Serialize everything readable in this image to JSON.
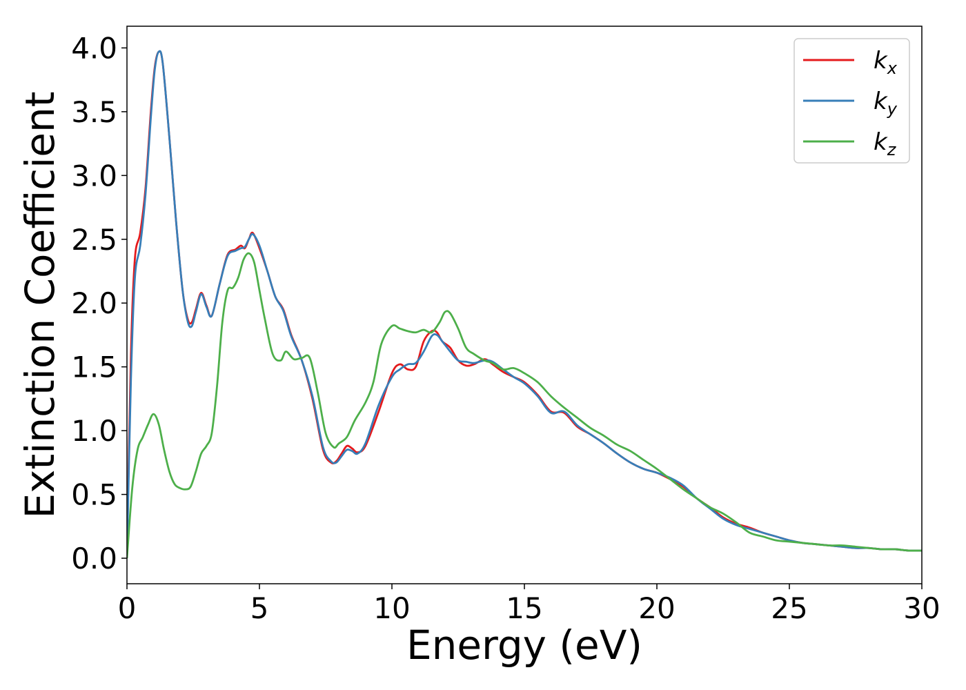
{
  "chart_data": {
    "type": "line",
    "title": "",
    "xlabel": "Energy (eV)",
    "ylabel": "Extinction Coefficient",
    "xlim": [
      0,
      30
    ],
    "ylim": [
      -0.2,
      4.17
    ],
    "xticks": [
      0,
      5,
      10,
      15,
      20,
      25,
      30
    ],
    "xtick_labels": [
      "0",
      "5",
      "10",
      "15",
      "20",
      "25",
      "30"
    ],
    "yticks": [
      0.0,
      0.5,
      1.0,
      1.5,
      2.0,
      2.5,
      3.0,
      3.5,
      4.0
    ],
    "ytick_labels": [
      "0.0",
      "0.5",
      "1.0",
      "1.5",
      "2.0",
      "2.5",
      "3.0",
      "3.5",
      "4.0"
    ],
    "grid": false,
    "legend_position": "top-right",
    "series": [
      {
        "name": "k_x",
        "label_base": "k",
        "label_sub": "x",
        "color": "#e41a1c",
        "x": [
          0,
          0.15,
          0.3,
          0.5,
          0.7,
          0.9,
          1.05,
          1.2,
          1.35,
          1.6,
          1.85,
          2.1,
          2.3,
          2.45,
          2.6,
          2.8,
          3.0,
          3.2,
          3.5,
          3.8,
          4.1,
          4.3,
          4.45,
          4.6,
          4.75,
          5.0,
          5.3,
          5.6,
          5.9,
          6.2,
          6.6,
          7.0,
          7.4,
          7.7,
          7.9,
          8.1,
          8.3,
          8.5,
          8.7,
          9.0,
          9.5,
          10.0,
          10.3,
          10.6,
          10.9,
          11.2,
          11.5,
          11.7,
          11.9,
          12.2,
          12.5,
          12.8,
          13.1,
          13.5,
          13.8,
          14.2,
          14.6,
          15.0,
          15.5,
          16.0,
          16.5,
          17.0,
          17.5,
          18.0,
          18.5,
          19.0,
          19.5,
          20.0,
          20.5,
          21.0,
          21.5,
          22.0,
          22.5,
          23.0,
          23.5,
          24.0,
          24.5,
          25.0,
          25.5,
          26.0,
          26.5,
          27.0,
          27.5,
          28.0,
          28.5,
          29.0,
          29.5,
          30.0
        ],
        "y": [
          0.0,
          1.6,
          2.35,
          2.55,
          2.9,
          3.5,
          3.85,
          3.97,
          3.88,
          3.3,
          2.65,
          2.1,
          1.87,
          1.85,
          1.95,
          2.08,
          1.98,
          1.9,
          2.15,
          2.38,
          2.42,
          2.45,
          2.43,
          2.5,
          2.55,
          2.43,
          2.25,
          2.05,
          1.95,
          1.75,
          1.55,
          1.25,
          0.85,
          0.75,
          0.76,
          0.82,
          0.88,
          0.86,
          0.83,
          0.88,
          1.15,
          1.45,
          1.52,
          1.48,
          1.5,
          1.7,
          1.78,
          1.77,
          1.7,
          1.65,
          1.55,
          1.51,
          1.52,
          1.56,
          1.52,
          1.46,
          1.42,
          1.38,
          1.28,
          1.15,
          1.14,
          1.03,
          0.97,
          0.9,
          0.82,
          0.75,
          0.7,
          0.67,
          0.62,
          0.56,
          0.47,
          0.4,
          0.32,
          0.27,
          0.24,
          0.2,
          0.17,
          0.14,
          0.12,
          0.11,
          0.1,
          0.09,
          0.08,
          0.08,
          0.07,
          0.07,
          0.06,
          0.06
        ]
      },
      {
        "name": "k_y",
        "label_base": "k",
        "label_sub": "y",
        "color": "#377eb8",
        "x": [
          0,
          0.15,
          0.3,
          0.5,
          0.7,
          0.9,
          1.05,
          1.2,
          1.35,
          1.6,
          1.85,
          2.1,
          2.3,
          2.45,
          2.6,
          2.8,
          3.0,
          3.2,
          3.5,
          3.8,
          4.1,
          4.3,
          4.45,
          4.6,
          4.75,
          5.0,
          5.3,
          5.6,
          5.9,
          6.2,
          6.6,
          7.0,
          7.4,
          7.7,
          7.9,
          8.1,
          8.3,
          8.5,
          8.7,
          9.0,
          9.5,
          10.0,
          10.3,
          10.6,
          10.9,
          11.2,
          11.5,
          11.7,
          11.9,
          12.2,
          12.5,
          12.8,
          13.1,
          13.5,
          13.8,
          14.2,
          14.6,
          15.0,
          15.5,
          16.0,
          16.5,
          17.0,
          17.5,
          18.0,
          18.5,
          19.0,
          19.5,
          20.0,
          20.5,
          21.0,
          21.5,
          22.0,
          22.5,
          23.0,
          23.5,
          24.0,
          24.5,
          25.0,
          25.5,
          26.0,
          26.5,
          27.0,
          27.5,
          28.0,
          28.5,
          29.0,
          29.5,
          30.0
        ],
        "y": [
          0.0,
          1.4,
          2.2,
          2.45,
          2.85,
          3.45,
          3.83,
          3.97,
          3.88,
          3.3,
          2.65,
          2.1,
          1.85,
          1.82,
          1.93,
          2.07,
          1.97,
          1.9,
          2.15,
          2.37,
          2.41,
          2.43,
          2.44,
          2.5,
          2.54,
          2.45,
          2.25,
          2.05,
          1.94,
          1.74,
          1.55,
          1.27,
          0.87,
          0.76,
          0.75,
          0.8,
          0.85,
          0.84,
          0.82,
          0.9,
          1.2,
          1.42,
          1.48,
          1.52,
          1.53,
          1.62,
          1.74,
          1.75,
          1.7,
          1.62,
          1.55,
          1.54,
          1.53,
          1.55,
          1.54,
          1.48,
          1.42,
          1.37,
          1.27,
          1.14,
          1.15,
          1.04,
          0.97,
          0.9,
          0.82,
          0.75,
          0.7,
          0.67,
          0.63,
          0.57,
          0.47,
          0.39,
          0.31,
          0.26,
          0.23,
          0.2,
          0.17,
          0.14,
          0.12,
          0.11,
          0.1,
          0.09,
          0.08,
          0.08,
          0.07,
          0.07,
          0.06,
          0.06
        ]
      },
      {
        "name": "k_z",
        "label_base": "k",
        "label_sub": "z",
        "color": "#4daf4a",
        "x": [
          0,
          0.2,
          0.4,
          0.6,
          0.8,
          1.0,
          1.2,
          1.4,
          1.6,
          1.8,
          2.0,
          2.2,
          2.4,
          2.6,
          2.8,
          3.0,
          3.2,
          3.4,
          3.6,
          3.8,
          4.0,
          4.2,
          4.4,
          4.6,
          4.8,
          5.0,
          5.2,
          5.5,
          5.8,
          6.0,
          6.3,
          6.6,
          6.9,
          7.2,
          7.5,
          7.8,
          8.0,
          8.3,
          8.6,
          9.0,
          9.3,
          9.6,
          10.0,
          10.3,
          10.6,
          10.9,
          11.2,
          11.5,
          11.8,
          12.0,
          12.2,
          12.5,
          12.8,
          13.1,
          13.5,
          13.8,
          14.2,
          14.6,
          15.0,
          15.5,
          16.0,
          16.5,
          17.0,
          17.5,
          18.0,
          18.5,
          19.0,
          19.5,
          20.0,
          20.5,
          21.0,
          21.5,
          22.0,
          22.5,
          23.0,
          23.5,
          24.0,
          24.5,
          25.0,
          25.5,
          26.0,
          26.5,
          27.0,
          27.5,
          28.0,
          28.5,
          29.0,
          29.5,
          30.0
        ],
        "y": [
          0.0,
          0.55,
          0.85,
          0.95,
          1.05,
          1.13,
          1.05,
          0.85,
          0.68,
          0.58,
          0.55,
          0.54,
          0.56,
          0.68,
          0.82,
          0.88,
          0.98,
          1.35,
          1.85,
          2.1,
          2.12,
          2.2,
          2.34,
          2.39,
          2.32,
          2.1,
          1.88,
          1.6,
          1.55,
          1.62,
          1.56,
          1.57,
          1.57,
          1.3,
          0.98,
          0.87,
          0.9,
          0.95,
          1.08,
          1.22,
          1.38,
          1.68,
          1.82,
          1.8,
          1.78,
          1.77,
          1.79,
          1.77,
          1.85,
          1.93,
          1.92,
          1.8,
          1.65,
          1.6,
          1.55,
          1.53,
          1.48,
          1.49,
          1.45,
          1.38,
          1.27,
          1.18,
          1.1,
          1.02,
          0.96,
          0.89,
          0.84,
          0.77,
          0.7,
          0.62,
          0.54,
          0.47,
          0.4,
          0.35,
          0.28,
          0.2,
          0.17,
          0.14,
          0.13,
          0.12,
          0.11,
          0.1,
          0.1,
          0.09,
          0.08,
          0.07,
          0.07,
          0.06,
          0.06
        ]
      }
    ]
  }
}
